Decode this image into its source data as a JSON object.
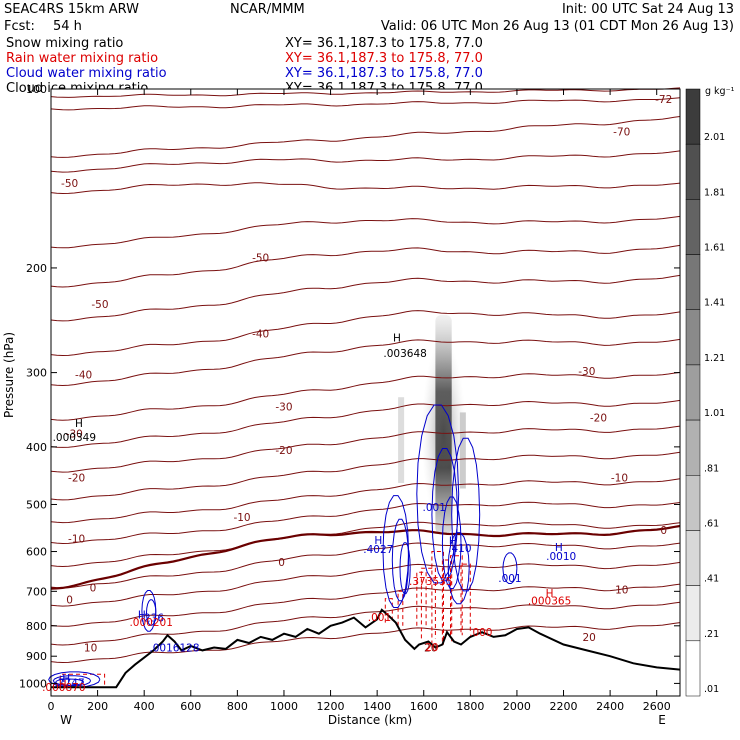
{
  "header": {
    "model": "SEAC4RS 15km ARW",
    "org": "NCAR/MMM",
    "init": "Init: 00 UTC Sat 24 Aug 13",
    "fcst_label": "Fcst:",
    "fcst_value": "54 h",
    "valid": "Valid: 06 UTC Mon 26 Aug 13 (01 CDT Mon 26 Aug 13)"
  },
  "fields": [
    {
      "name": "Snow mixing ratio",
      "xy": "XY=  36.1,187.3 to 175.8, 77.0",
      "color": "#000000"
    },
    {
      "name": "Rain water mixing ratio",
      "xy": "XY=  36.1,187.3 to 175.8, 77.0",
      "color": "#dd0000"
    },
    {
      "name": "Cloud water mixing ratio",
      "xy": "XY=  36.1,187.3 to 175.8, 77.0",
      "color": "#0000cc"
    },
    {
      "name": "Cloud ice mixing ratio",
      "xy": "XY=  36.1,187.3 to 175.8, 77.0",
      "color": "#000000"
    }
  ],
  "colorbar": {
    "unit": "g kg⁻¹",
    "labels": [
      "2.01",
      "1.81",
      "1.61",
      "1.41",
      "1.21",
      "1.01",
      ".81",
      ".61",
      ".41",
      ".21",
      ".01"
    ]
  },
  "chart_data": {
    "type": "cross-section",
    "xlabel": "Distance (km)",
    "ylabel": "Pressure (hPa)",
    "xlim": [
      0,
      2700
    ],
    "ylim": [
      1050,
      100
    ],
    "y_scale": "log",
    "x_ticks": [
      0,
      200,
      400,
      600,
      800,
      1000,
      1200,
      1400,
      1600,
      1800,
      2000,
      2200,
      2400,
      2600
    ],
    "y_ticks": [
      1000,
      900,
      800,
      700,
      600,
      500,
      400,
      300,
      200,
      100
    ],
    "x_end_labels": {
      "left": "W",
      "right": "E"
    },
    "isotherm_color": "#7a1010",
    "freezing_color": "#6a0000",
    "isotherm_labels": [
      {
        "text": "-72",
        "x": 2630,
        "p": 104
      },
      {
        "text": "-70",
        "x": 2450,
        "p": 118
      },
      {
        "text": "-50",
        "x": 80,
        "p": 144
      },
      {
        "text": "-50",
        "x": 900,
        "p": 192
      },
      {
        "text": "-50",
        "x": 210,
        "p": 230
      },
      {
        "text": "-40",
        "x": 900,
        "p": 258
      },
      {
        "text": "-40",
        "x": 140,
        "p": 302
      },
      {
        "text": "-30",
        "x": 1000,
        "p": 342
      },
      {
        "text": "-30",
        "x": 2300,
        "p": 298
      },
      {
        "text": "-30",
        "x": 100,
        "p": 380
      },
      {
        "text": "-20",
        "x": 2350,
        "p": 357
      },
      {
        "text": "-20",
        "x": 1000,
        "p": 405
      },
      {
        "text": "-20",
        "x": 110,
        "p": 450
      },
      {
        "text": "-10",
        "x": 2440,
        "p": 450
      },
      {
        "text": "-10",
        "x": 820,
        "p": 525
      },
      {
        "text": "-10",
        "x": 110,
        "p": 570
      },
      {
        "text": "0",
        "x": 2630,
        "p": 552
      },
      {
        "text": "0",
        "x": 990,
        "p": 625
      },
      {
        "text": "0",
        "x": 180,
        "p": 690
      },
      {
        "text": "0",
        "x": 80,
        "p": 722
      },
      {
        "text": "10",
        "x": 2450,
        "p": 695
      },
      {
        "text": "10",
        "x": 170,
        "p": 870
      },
      {
        "text": "20",
        "x": 2310,
        "p": 835
      },
      {
        "text": "20",
        "x": 1630,
        "p": 870
      }
    ],
    "field_labels": [
      {
        "text": "H",
        "x": 1485,
        "p": 262,
        "color": "#000000"
      },
      {
        "text": ".003648",
        "x": 1520,
        "p": 278,
        "color": "#000000"
      },
      {
        "text": "H",
        "x": 120,
        "p": 365,
        "color": "#000000"
      },
      {
        "text": ".000349",
        "x": 100,
        "p": 385,
        "color": "#000000"
      },
      {
        "text": ".001",
        "x": 1645,
        "p": 505,
        "color": "#0000cc"
      },
      {
        "text": "H",
        "x": 1405,
        "p": 574,
        "color": "#0000cc"
      },
      {
        "text": ".4027",
        "x": 1405,
        "p": 594,
        "color": "#0000cc"
      },
      {
        "text": "H",
        "x": 1725,
        "p": 575,
        "color": "#0000cc"
      },
      {
        "text": ".410",
        "x": 1755,
        "p": 592,
        "color": "#0000cc"
      },
      {
        "text": "H",
        "x": 2180,
        "p": 590,
        "color": "#0000cc"
      },
      {
        "text": ".0010",
        "x": 2190,
        "p": 610,
        "color": "#0000cc"
      },
      {
        "text": ".001",
        "x": 1970,
        "p": 665,
        "color": "#0000cc"
      },
      {
        "text": ".373535",
        "x": 1630,
        "p": 673,
        "color": "#dd0000"
      },
      {
        "text": "H",
        "x": 2140,
        "p": 705,
        "color": "#dd0000"
      },
      {
        "text": ".000365",
        "x": 2140,
        "p": 725,
        "color": "#dd0000"
      },
      {
        "text": "H",
        "x": 390,
        "p": 765,
        "color": "#0000cc"
      },
      {
        "text": ".236",
        "x": 435,
        "p": 775,
        "color": "#0000cc"
      },
      {
        "text": ".000201",
        "x": 430,
        "p": 788,
        "color": "#dd0000"
      },
      {
        "text": ".0016128",
        "x": 530,
        "p": 870,
        "color": "#0000cc"
      },
      {
        "text": ".001",
        "x": 1410,
        "p": 773,
        "color": "#dd0000"
      },
      {
        "text": ".000",
        "x": 1845,
        "p": 820,
        "color": "#dd0000"
      },
      {
        "text": "20",
        "x": 1635,
        "p": 868,
        "color": "#dd0000"
      },
      {
        "text": "H",
        "x": 65,
        "p": 980,
        "color": "#0000cc"
      },
      {
        "text": ".7747",
        "x": 80,
        "p": 996,
        "color": "#0000cc"
      },
      {
        "text": "H",
        "x": 50,
        "p": 1003,
        "color": "#dd0000"
      },
      {
        "text": ".000870",
        "x": 55,
        "p": 1014,
        "color": "#dd0000"
      }
    ]
  }
}
